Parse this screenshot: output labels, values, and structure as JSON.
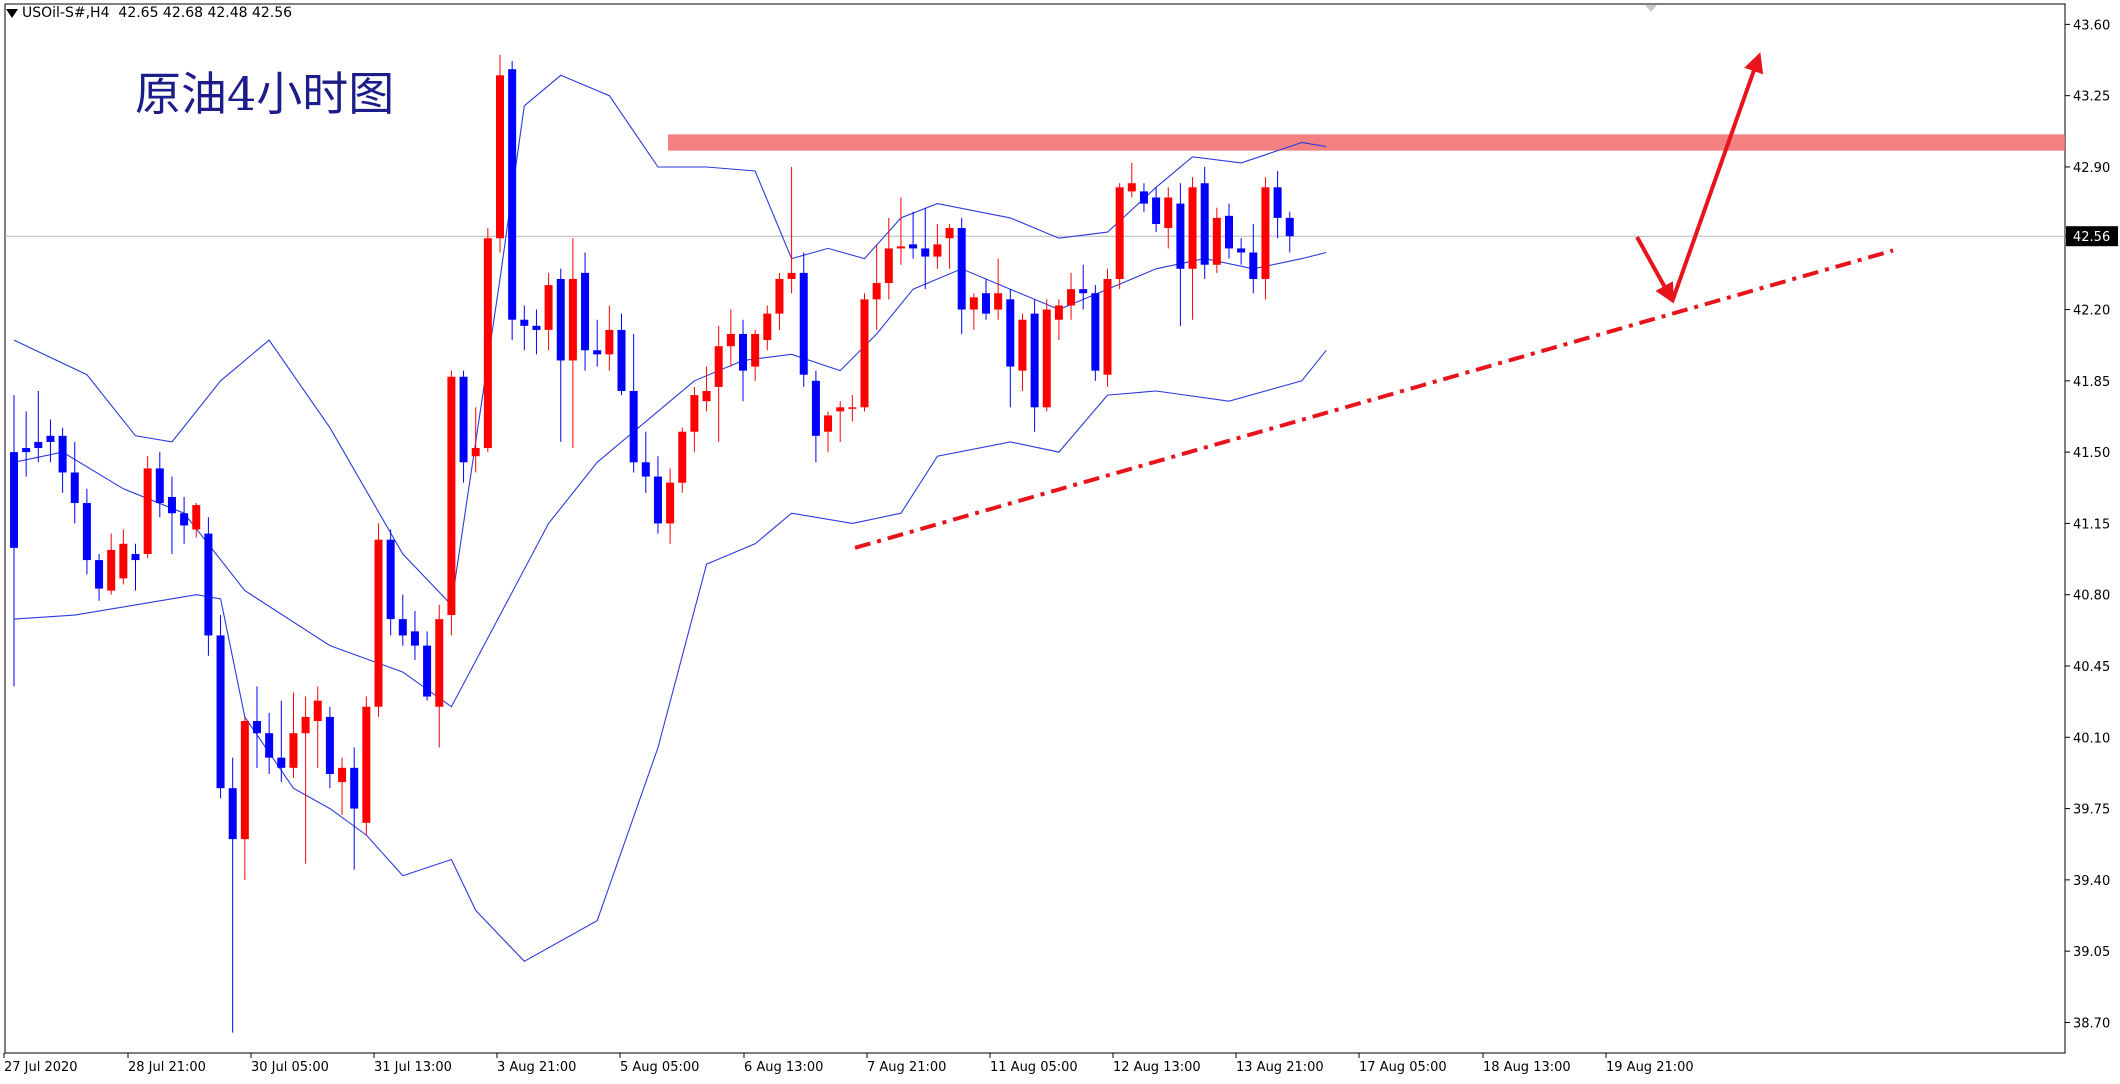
{
  "header": {
    "symbol_info": "USOil-S#,H4",
    "ohlc": "42.65 42.68 42.48 42.56"
  },
  "chart_data": {
    "type": "candlestick",
    "title": "原油4小时图",
    "symbol": "USOil-S#",
    "timeframe": "H4",
    "ylim": [
      38.55,
      43.7
    ],
    "y_ticks": [
      "43.60",
      "43.25",
      "42.90",
      "42.56",
      "42.20",
      "41.85",
      "41.50",
      "41.15",
      "40.80",
      "40.45",
      "40.10",
      "39.75",
      "39.40",
      "39.05",
      "38.70"
    ],
    "x_ticks": [
      "27 Jul 2020",
      "28 Jul 21:00",
      "30 Jul 05:00",
      "31 Jul 13:00",
      "3 Aug 21:00",
      "5 Aug 05:00",
      "6 Aug 13:00",
      "7 Aug 21:00",
      "11 Aug 05:00",
      "12 Aug 13:00",
      "13 Aug 21:00",
      "17 Aug 05:00",
      "18 Aug 13:00",
      "19 Aug 21:00"
    ],
    "current_price": "42.56",
    "up_color": "#ff0000",
    "down_color": "#0000ff",
    "band_color": "#2b3bdb",
    "annotation_color": "#e8141c",
    "resistance_zone": [
      42.98,
      43.06
    ],
    "trendline": {
      "from": [
        41.03,
        0
      ],
      "to": [
        42.49,
        1
      ],
      "style": "dash-dot"
    },
    "candles": [
      {
        "o": 41.5,
        "h": 41.78,
        "l": 40.35,
        "c": 41.03
      },
      {
        "o": 41.52,
        "h": 41.7,
        "l": 41.38,
        "c": 41.5
      },
      {
        "o": 41.55,
        "h": 41.8,
        "l": 41.45,
        "c": 41.52
      },
      {
        "o": 41.58,
        "h": 41.66,
        "l": 41.45,
        "c": 41.55
      },
      {
        "o": 41.58,
        "h": 41.62,
        "l": 41.3,
        "c": 41.4
      },
      {
        "o": 41.4,
        "h": 41.55,
        "l": 41.15,
        "c": 41.25
      },
      {
        "o": 41.25,
        "h": 41.32,
        "l": 40.9,
        "c": 40.97
      },
      {
        "o": 40.97,
        "h": 41.0,
        "l": 40.77,
        "c": 40.83
      },
      {
        "o": 40.82,
        "h": 41.1,
        "l": 40.8,
        "c": 41.02
      },
      {
        "o": 40.88,
        "h": 41.12,
        "l": 40.85,
        "c": 41.05
      },
      {
        "o": 41.0,
        "h": 41.05,
        "l": 40.82,
        "c": 40.97
      },
      {
        "o": 41.0,
        "h": 41.48,
        "l": 40.98,
        "c": 41.42
      },
      {
        "o": 41.42,
        "h": 41.5,
        "l": 41.18,
        "c": 41.25
      },
      {
        "o": 41.28,
        "h": 41.38,
        "l": 41.0,
        "c": 41.2
      },
      {
        "o": 41.2,
        "h": 41.28,
        "l": 41.05,
        "c": 41.14
      },
      {
        "o": 41.12,
        "h": 41.25,
        "l": 41.08,
        "c": 41.24
      },
      {
        "o": 41.1,
        "h": 41.18,
        "l": 40.5,
        "c": 40.6
      },
      {
        "o": 40.6,
        "h": 40.7,
        "l": 39.8,
        "c": 39.85
      },
      {
        "o": 39.85,
        "h": 40.0,
        "l": 38.65,
        "c": 39.6
      },
      {
        "o": 39.6,
        "h": 40.2,
        "l": 39.4,
        "c": 40.18
      },
      {
        "o": 40.18,
        "h": 40.35,
        "l": 39.95,
        "c": 40.12
      },
      {
        "o": 40.12,
        "h": 40.22,
        "l": 39.92,
        "c": 40.0
      },
      {
        "o": 40.0,
        "h": 40.28,
        "l": 39.88,
        "c": 39.95
      },
      {
        "o": 39.95,
        "h": 40.32,
        "l": 39.9,
        "c": 40.12
      },
      {
        "o": 40.12,
        "h": 40.3,
        "l": 39.48,
        "c": 40.2
      },
      {
        "o": 40.18,
        "h": 40.35,
        "l": 39.95,
        "c": 40.28
      },
      {
        "o": 40.2,
        "h": 40.25,
        "l": 39.85,
        "c": 39.92
      },
      {
        "o": 39.88,
        "h": 40.0,
        "l": 39.72,
        "c": 39.95
      },
      {
        "o": 39.95,
        "h": 40.05,
        "l": 39.45,
        "c": 39.75
      },
      {
        "o": 39.68,
        "h": 40.3,
        "l": 39.62,
        "c": 40.25
      },
      {
        "o": 40.25,
        "h": 41.15,
        "l": 40.2,
        "c": 41.07
      },
      {
        "o": 41.07,
        "h": 41.12,
        "l": 40.6,
        "c": 40.68
      },
      {
        "o": 40.68,
        "h": 40.8,
        "l": 40.55,
        "c": 40.6
      },
      {
        "o": 40.62,
        "h": 40.72,
        "l": 40.48,
        "c": 40.55
      },
      {
        "o": 40.55,
        "h": 40.62,
        "l": 40.28,
        "c": 40.3
      },
      {
        "o": 40.25,
        "h": 40.75,
        "l": 40.05,
        "c": 40.68
      },
      {
        "o": 40.7,
        "h": 41.9,
        "l": 40.6,
        "c": 41.87
      },
      {
        "o": 41.87,
        "h": 41.9,
        "l": 41.35,
        "c": 41.45
      },
      {
        "o": 41.48,
        "h": 41.72,
        "l": 41.4,
        "c": 41.52
      },
      {
        "o": 41.52,
        "h": 42.6,
        "l": 41.5,
        "c": 42.55
      },
      {
        "o": 42.55,
        "h": 43.45,
        "l": 42.48,
        "c": 43.35
      },
      {
        "o": 43.38,
        "h": 43.42,
        "l": 42.05,
        "c": 42.15
      },
      {
        "o": 42.15,
        "h": 42.22,
        "l": 42.0,
        "c": 42.12
      },
      {
        "o": 42.12,
        "h": 42.2,
        "l": 41.98,
        "c": 42.1
      },
      {
        "o": 42.1,
        "h": 42.38,
        "l": 42.0,
        "c": 42.32
      },
      {
        "o": 42.35,
        "h": 42.4,
        "l": 41.55,
        "c": 41.95
      },
      {
        "o": 41.95,
        "h": 42.55,
        "l": 41.52,
        "c": 42.35
      },
      {
        "o": 42.38,
        "h": 42.48,
        "l": 41.9,
        "c": 42.0
      },
      {
        "o": 42.0,
        "h": 42.15,
        "l": 41.92,
        "c": 41.98
      },
      {
        "o": 41.98,
        "h": 42.22,
        "l": 41.9,
        "c": 42.1
      },
      {
        "o": 42.1,
        "h": 42.18,
        "l": 41.78,
        "c": 41.8
      },
      {
        "o": 41.8,
        "h": 42.08,
        "l": 41.4,
        "c": 41.45
      },
      {
        "o": 41.45,
        "h": 41.6,
        "l": 41.3,
        "c": 41.38
      },
      {
        "o": 41.38,
        "h": 41.48,
        "l": 41.1,
        "c": 41.15
      },
      {
        "o": 41.15,
        "h": 41.42,
        "l": 41.05,
        "c": 41.35
      },
      {
        "o": 41.35,
        "h": 41.62,
        "l": 41.3,
        "c": 41.6
      },
      {
        "o": 41.6,
        "h": 41.82,
        "l": 41.5,
        "c": 41.78
      },
      {
        "o": 41.75,
        "h": 41.92,
        "l": 41.7,
        "c": 41.8
      },
      {
        "o": 41.82,
        "h": 42.12,
        "l": 41.55,
        "c": 42.02
      },
      {
        "o": 42.02,
        "h": 42.2,
        "l": 41.92,
        "c": 42.08
      },
      {
        "o": 42.08,
        "h": 42.15,
        "l": 41.75,
        "c": 41.9
      },
      {
        "o": 41.92,
        "h": 42.1,
        "l": 41.85,
        "c": 42.08
      },
      {
        "o": 42.05,
        "h": 42.22,
        "l": 42.0,
        "c": 42.18
      },
      {
        "o": 42.18,
        "h": 42.38,
        "l": 42.1,
        "c": 42.35
      },
      {
        "o": 42.35,
        "h": 42.9,
        "l": 42.28,
        "c": 42.38
      },
      {
        "o": 42.38,
        "h": 42.48,
        "l": 41.82,
        "c": 41.88
      },
      {
        "o": 41.85,
        "h": 41.9,
        "l": 41.45,
        "c": 41.58
      },
      {
        "o": 41.6,
        "h": 41.7,
        "l": 41.5,
        "c": 41.68
      },
      {
        "o": 41.7,
        "h": 41.75,
        "l": 41.55,
        "c": 41.72
      },
      {
        "o": 41.72,
        "h": 41.78,
        "l": 41.65,
        "c": 41.72
      },
      {
        "o": 41.72,
        "h": 42.28,
        "l": 41.7,
        "c": 42.25
      },
      {
        "o": 42.25,
        "h": 42.52,
        "l": 42.1,
        "c": 42.33
      },
      {
        "o": 42.33,
        "h": 42.65,
        "l": 42.25,
        "c": 42.5
      },
      {
        "o": 42.5,
        "h": 42.75,
        "l": 42.42,
        "c": 42.51
      },
      {
        "o": 42.52,
        "h": 42.68,
        "l": 42.45,
        "c": 42.5
      },
      {
        "o": 42.5,
        "h": 42.7,
        "l": 42.3,
        "c": 42.46
      },
      {
        "o": 42.46,
        "h": 42.62,
        "l": 42.4,
        "c": 42.52
      },
      {
        "o": 42.55,
        "h": 42.62,
        "l": 42.4,
        "c": 42.6
      },
      {
        "o": 42.6,
        "h": 42.65,
        "l": 42.08,
        "c": 42.2
      },
      {
        "o": 42.2,
        "h": 42.28,
        "l": 42.1,
        "c": 42.26
      },
      {
        "o": 42.28,
        "h": 42.35,
        "l": 42.15,
        "c": 42.18
      },
      {
        "o": 42.2,
        "h": 42.45,
        "l": 42.15,
        "c": 42.28
      },
      {
        "o": 42.25,
        "h": 42.3,
        "l": 41.72,
        "c": 41.92
      },
      {
        "o": 41.9,
        "h": 42.18,
        "l": 41.8,
        "c": 42.15
      },
      {
        "o": 42.18,
        "h": 42.25,
        "l": 41.6,
        "c": 41.72
      },
      {
        "o": 41.72,
        "h": 42.25,
        "l": 41.7,
        "c": 42.2
      },
      {
        "o": 42.15,
        "h": 42.25,
        "l": 42.05,
        "c": 42.22
      },
      {
        "o": 42.22,
        "h": 42.38,
        "l": 42.15,
        "c": 42.3
      },
      {
        "o": 42.3,
        "h": 42.42,
        "l": 42.2,
        "c": 42.28
      },
      {
        "o": 42.28,
        "h": 42.32,
        "l": 41.85,
        "c": 41.9
      },
      {
        "o": 41.88,
        "h": 42.4,
        "l": 41.82,
        "c": 42.35
      },
      {
        "o": 42.35,
        "h": 42.82,
        "l": 42.3,
        "c": 42.8
      },
      {
        "o": 42.78,
        "h": 42.92,
        "l": 42.75,
        "c": 42.82
      },
      {
        "o": 42.78,
        "h": 42.82,
        "l": 42.68,
        "c": 42.72
      },
      {
        "o": 42.75,
        "h": 42.8,
        "l": 42.58,
        "c": 42.62
      },
      {
        "o": 42.6,
        "h": 42.8,
        "l": 42.5,
        "c": 42.75
      },
      {
        "o": 42.72,
        "h": 42.82,
        "l": 42.12,
        "c": 42.4
      },
      {
        "o": 42.4,
        "h": 42.85,
        "l": 42.15,
        "c": 42.8
      },
      {
        "o": 42.82,
        "h": 42.9,
        "l": 42.35,
        "c": 42.42
      },
      {
        "o": 42.42,
        "h": 42.7,
        "l": 42.38,
        "c": 42.65
      },
      {
        "o": 42.66,
        "h": 42.72,
        "l": 42.45,
        "c": 42.5
      },
      {
        "o": 42.5,
        "h": 42.55,
        "l": 42.42,
        "c": 42.48
      },
      {
        "o": 42.48,
        "h": 42.62,
        "l": 42.28,
        "c": 42.35
      },
      {
        "o": 42.35,
        "h": 42.85,
        "l": 42.25,
        "c": 42.8
      },
      {
        "o": 42.8,
        "h": 42.88,
        "l": 42.55,
        "c": 42.65
      },
      {
        "o": 42.65,
        "h": 42.68,
        "l": 42.48,
        "c": 42.56
      }
    ],
    "band_upper": [
      [
        0,
        42.05
      ],
      [
        6,
        41.88
      ],
      [
        10,
        41.58
      ],
      [
        13,
        41.55
      ],
      [
        17,
        41.85
      ],
      [
        21,
        42.05
      ],
      [
        26,
        41.62
      ],
      [
        32,
        41.0
      ],
      [
        36,
        40.75
      ],
      [
        40,
        42.35
      ],
      [
        42,
        43.2
      ],
      [
        45,
        43.35
      ],
      [
        49,
        43.25
      ],
      [
        53,
        42.9
      ],
      [
        57,
        42.9
      ],
      [
        61,
        42.88
      ],
      [
        64,
        42.45
      ],
      [
        67,
        42.5
      ],
      [
        70,
        42.45
      ],
      [
        73,
        42.65
      ],
      [
        76,
        42.72
      ],
      [
        82,
        42.65
      ],
      [
        86,
        42.55
      ],
      [
        90,
        42.58
      ],
      [
        94,
        42.8
      ],
      [
        97,
        42.95
      ],
      [
        101,
        42.92
      ],
      [
        106,
        43.02
      ],
      [
        108,
        43.0
      ]
    ],
    "band_middle": [
      [
        0,
        41.45
      ],
      [
        4,
        41.5
      ],
      [
        9,
        41.32
      ],
      [
        14,
        41.2
      ],
      [
        19,
        40.82
      ],
      [
        26,
        40.55
      ],
      [
        32,
        40.42
      ],
      [
        36,
        40.25
      ],
      [
        40,
        40.7
      ],
      [
        44,
        41.15
      ],
      [
        48,
        41.45
      ],
      [
        52,
        41.65
      ],
      [
        56,
        41.85
      ],
      [
        60,
        41.95
      ],
      [
        64,
        41.98
      ],
      [
        68,
        41.9
      ],
      [
        71,
        42.08
      ],
      [
        74,
        42.3
      ],
      [
        78,
        42.4
      ],
      [
        82,
        42.3
      ],
      [
        86,
        42.2
      ],
      [
        90,
        42.3
      ],
      [
        94,
        42.4
      ],
      [
        98,
        42.45
      ],
      [
        102,
        42.4
      ],
      [
        106,
        42.45
      ],
      [
        108,
        42.48
      ]
    ],
    "band_lower": [
      [
        0,
        40.68
      ],
      [
        5,
        40.7
      ],
      [
        10,
        40.75
      ],
      [
        15,
        40.8
      ],
      [
        17,
        40.78
      ],
      [
        19,
        40.2
      ],
      [
        23,
        39.85
      ],
      [
        26,
        39.75
      ],
      [
        29,
        39.62
      ],
      [
        32,
        39.42
      ],
      [
        36,
        39.5
      ],
      [
        38,
        39.25
      ],
      [
        42,
        39.0
      ],
      [
        48,
        39.2
      ],
      [
        53,
        40.05
      ],
      [
        57,
        40.95
      ],
      [
        61,
        41.05
      ],
      [
        64,
        41.2
      ],
      [
        69,
        41.15
      ],
      [
        73,
        41.2
      ],
      [
        76,
        41.48
      ],
      [
        82,
        41.55
      ],
      [
        86,
        41.5
      ],
      [
        90,
        41.78
      ],
      [
        94,
        41.8
      ],
      [
        100,
        41.75
      ],
      [
        106,
        41.85
      ],
      [
        108,
        42.0
      ]
    ]
  }
}
